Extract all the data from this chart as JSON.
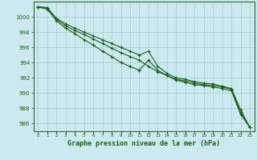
{
  "xlabel": "Graphe pression niveau de la mer (hPa)",
  "bg_color": "#cce9f0",
  "grid_color": "#aacccc",
  "line_color": "#1a5c1a",
  "x_hours": [
    0,
    1,
    2,
    3,
    4,
    5,
    6,
    7,
    8,
    9,
    10,
    11,
    12,
    13,
    14,
    15,
    16,
    17,
    18,
    19,
    20,
    21,
    22,
    23
  ],
  "line1": [
    1001.3,
    1001.2,
    999.7,
    998.8,
    998.2,
    997.7,
    997.1,
    996.5,
    995.9,
    995.3,
    994.8,
    994.3,
    993.5,
    992.8,
    992.3,
    991.7,
    991.4,
    991.1,
    991.0,
    990.8,
    990.6,
    990.3,
    987.2,
    985.5
  ],
  "line2": [
    1001.3,
    1001.0,
    999.5,
    998.5,
    997.8,
    997.0,
    996.3,
    995.5,
    994.8,
    994.0,
    993.5,
    993.0,
    994.3,
    993.0,
    992.3,
    991.8,
    991.6,
    991.3,
    991.1,
    991.0,
    990.8,
    990.5,
    987.5,
    985.5
  ],
  "line3": [
    1001.3,
    1001.2,
    999.8,
    999.1,
    998.5,
    998.0,
    997.5,
    997.0,
    996.5,
    996.0,
    995.5,
    995.0,
    995.5,
    993.5,
    992.6,
    992.0,
    991.8,
    991.5,
    991.3,
    991.2,
    990.9,
    990.6,
    987.8,
    985.5
  ],
  "ylim_min": 985.0,
  "ylim_max": 1002.0,
  "ytick_min": 986,
  "ytick_max": 1000,
  "ytick_step": 2,
  "spine_color": "#336633"
}
